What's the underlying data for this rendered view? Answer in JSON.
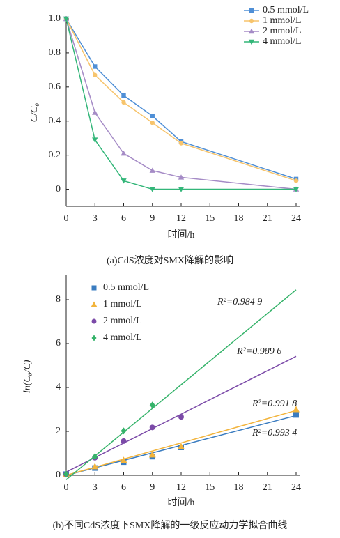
{
  "chart_data": [
    {
      "type": "line",
      "x_label": "时间/h",
      "y_label": "C/C₀",
      "caption": "(a)CdS浓度对SMX降解的影响",
      "x": [
        0,
        3,
        6,
        9,
        12,
        24
      ],
      "xlim": [
        0,
        24
      ],
      "xticks": [
        0,
        3,
        6,
        9,
        12,
        15,
        18,
        21,
        24
      ],
      "ylim": [
        -0.1,
        1.0
      ],
      "yticks": [
        0,
        0.2,
        0.4,
        0.6,
        0.8,
        {
          "value": 1,
          "label": "1.0"
        }
      ],
      "legend": "upper right",
      "series": [
        {
          "name": "0.5 mmol/L",
          "color": "#4f8fd6",
          "marker": "square",
          "values": [
            1.0,
            0.72,
            0.55,
            0.43,
            0.28,
            0.06
          ]
        },
        {
          "name": "1 mmol/L",
          "color": "#f7c46c",
          "marker": "circle",
          "values": [
            1.0,
            0.67,
            0.51,
            0.39,
            0.27,
            0.05
          ]
        },
        {
          "name": "2 mmol/L",
          "color": "#a58bc6",
          "marker": "triangle-up",
          "values": [
            1.0,
            0.45,
            0.21,
            0.11,
            0.07,
            0
          ]
        },
        {
          "name": "4 mmol/L",
          "color": "#33b679",
          "marker": "triangle-down",
          "values": [
            1.0,
            0.29,
            0.05,
            0,
            0,
            0
          ]
        }
      ]
    },
    {
      "type": "scatter",
      "x_label": "时间/h",
      "y_label": "ln(C₀/C)",
      "caption": "(b)不同CdS浓度下SMX降解的一级反应动力学拟合曲线",
      "x": [
        0,
        3,
        6,
        9,
        12,
        24
      ],
      "xlim": [
        0,
        24
      ],
      "xticks": [
        0,
        3,
        6,
        9,
        12,
        15,
        18,
        21,
        24
      ],
      "ylim": [
        0,
        9
      ],
      "yticks": [
        0,
        2,
        4,
        6,
        8
      ],
      "legend": "upper left",
      "series": [
        {
          "name": "0.5 mmol/L",
          "color": "#3a7cc0",
          "marker": "square",
          "values": [
            0.05,
            0.33,
            0.6,
            0.85,
            1.27,
            2.75
          ],
          "fit": {
            "x": [
              0,
              24
            ],
            "values": [
              0,
              2.72
            ]
          },
          "annotation": "R²=0.993 4"
        },
        {
          "name": "1 mmol/L",
          "color": "#f2b43c",
          "marker": "triangle-up",
          "values": [
            0.05,
            0.4,
            0.69,
            0.94,
            1.31,
            3.0
          ],
          "fit": {
            "x": [
              0,
              24
            ],
            "values": [
              0,
              2.95
            ]
          },
          "annotation": "R²=0.991 8"
        },
        {
          "name": "2 mmol/L",
          "color": "#7b4aa8",
          "marker": "circle",
          "values": [
            0.05,
            0.8,
            1.56,
            2.18,
            2.66,
            null
          ],
          "fit": {
            "x": [
              0,
              24
            ],
            "values": [
              0.15,
              5.42
            ]
          },
          "annotation": "R²=0.989 6"
        },
        {
          "name": "4 mmol/L",
          "color": "#35b36a",
          "marker": "diamond",
          "values": [
            0.05,
            0.85,
            2.02,
            3.2,
            null,
            null
          ],
          "fit": {
            "x": [
              0,
              24
            ],
            "values": [
              -0.2,
              8.45
            ]
          },
          "annotation": "R²=0.984 9"
        }
      ]
    }
  ]
}
